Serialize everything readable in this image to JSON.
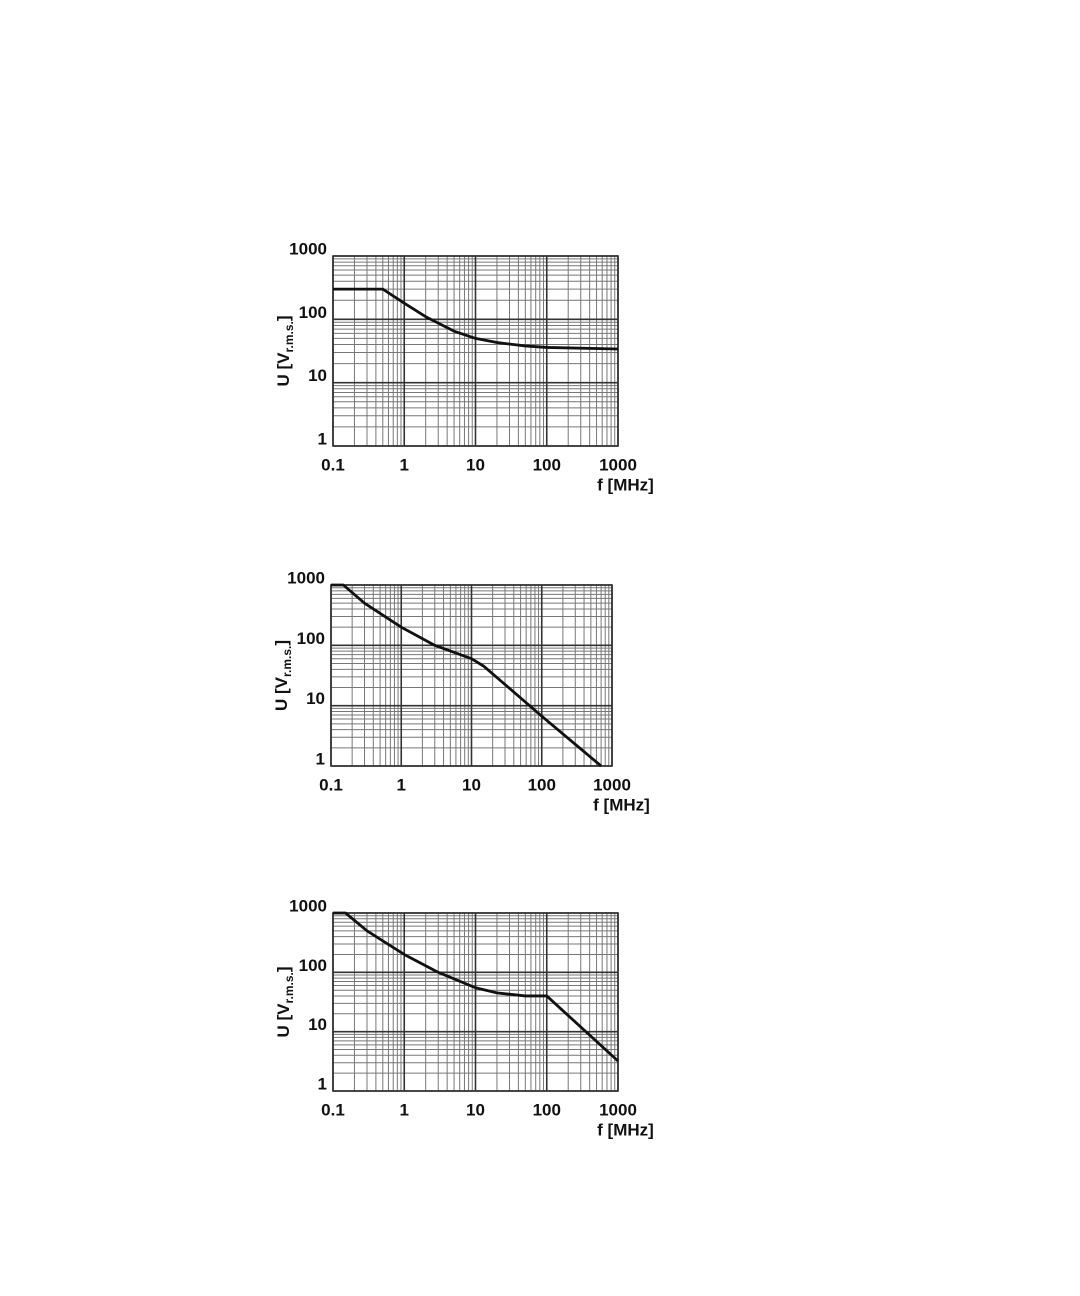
{
  "chart_data": [
    {
      "type": "line",
      "x": [
        0.1,
        0.5,
        1,
        2,
        5,
        10,
        20,
        50,
        100,
        1000
      ],
      "values": [
        300,
        300,
        180,
        110,
        65,
        50,
        43,
        38,
        36,
        34
      ],
      "color": "#111111",
      "xlog": true,
      "ylog": true,
      "grid": true,
      "minor_grid": true,
      "xlim": [
        0.1,
        1000
      ],
      "ylim": [
        1,
        1000
      ],
      "xticks": [
        0.1,
        1,
        10,
        100,
        1000
      ],
      "yticks": [
        1,
        10,
        100,
        1000
      ],
      "xlabel": "f [MHz]",
      "ylabel": "U [V",
      "ylabel_sub": "r.m.s.",
      "ylabel_end": "]"
    },
    {
      "type": "line",
      "x": [
        0.1,
        0.15,
        0.3,
        1,
        3,
        10,
        15,
        100,
        700
      ],
      "values": [
        1000,
        1000,
        500,
        200,
        100,
        60,
        45,
        6.7,
        1
      ],
      "color": "#111111",
      "xlog": true,
      "ylog": true,
      "grid": true,
      "minor_grid": true,
      "xlim": [
        0.1,
        1000
      ],
      "ylim": [
        1,
        1000
      ],
      "xticks": [
        0.1,
        1,
        10,
        100,
        1000
      ],
      "yticks": [
        1,
        10,
        100,
        1000
      ],
      "xlabel": "f [MHz]",
      "ylabel": "U [V",
      "ylabel_sub": "r.m.s.",
      "ylabel_end": "]"
    },
    {
      "type": "line",
      "x": [
        0.1,
        0.15,
        0.3,
        1,
        3,
        10,
        20,
        50,
        100,
        1000
      ],
      "values": [
        1000,
        1000,
        500,
        200,
        100,
        55,
        45,
        40,
        40,
        3.2
      ],
      "color": "#111111",
      "xlog": true,
      "ylog": true,
      "grid": true,
      "minor_grid": true,
      "xlim": [
        0.1,
        1000
      ],
      "ylim": [
        1,
        1000
      ],
      "xticks": [
        0.1,
        1,
        10,
        100,
        1000
      ],
      "yticks": [
        1,
        10,
        100,
        1000
      ],
      "xlabel": "f [MHz]",
      "ylabel": "U [V",
      "ylabel_sub": "r.m.s.",
      "ylabel_end": "]"
    }
  ]
}
